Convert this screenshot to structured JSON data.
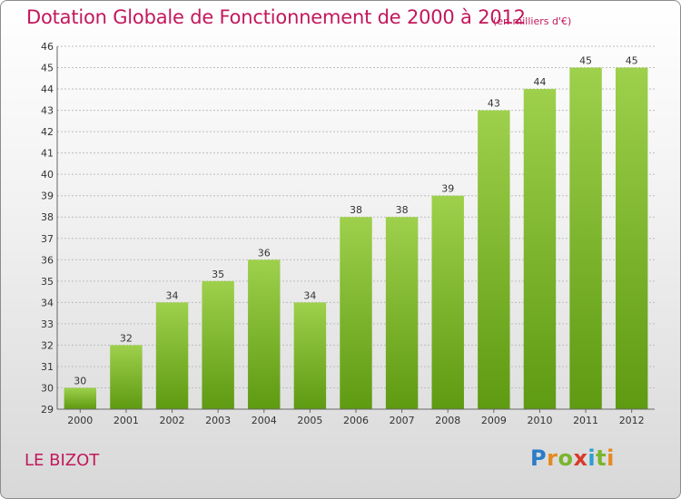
{
  "header": {
    "title": "Dotation Globale de Fonctionnement de 2000 à 2012",
    "subtitle": "(en milliers d'€)"
  },
  "footer": {
    "city": "LE BIZOT",
    "logo_text": "Proxiti"
  },
  "colors": {
    "title": "#c2185b",
    "bar_top": "#9ed04c",
    "bar_bottom": "#5e9a12",
    "grid": "#bdbdbd"
  },
  "chart_data": {
    "type": "bar",
    "categories": [
      "2000",
      "2001",
      "2002",
      "2003",
      "2004",
      "2005",
      "2006",
      "2007",
      "2008",
      "2009",
      "2010",
      "2011",
      "2012"
    ],
    "values": [
      30,
      32,
      34,
      35,
      36,
      34,
      38,
      38,
      39,
      43,
      44,
      45,
      45
    ],
    "data_labels": [
      "30",
      "32",
      "34",
      "35",
      "36",
      "34",
      "38",
      "38",
      "39",
      "43",
      "44",
      "45",
      "45"
    ],
    "yticks": [
      "29",
      "30",
      "31",
      "32",
      "33",
      "34",
      "35",
      "36",
      "37",
      "38",
      "39",
      "40",
      "41",
      "42",
      "43",
      "44",
      "45",
      "46"
    ],
    "ylim": [
      29,
      46
    ],
    "grid": true
  }
}
